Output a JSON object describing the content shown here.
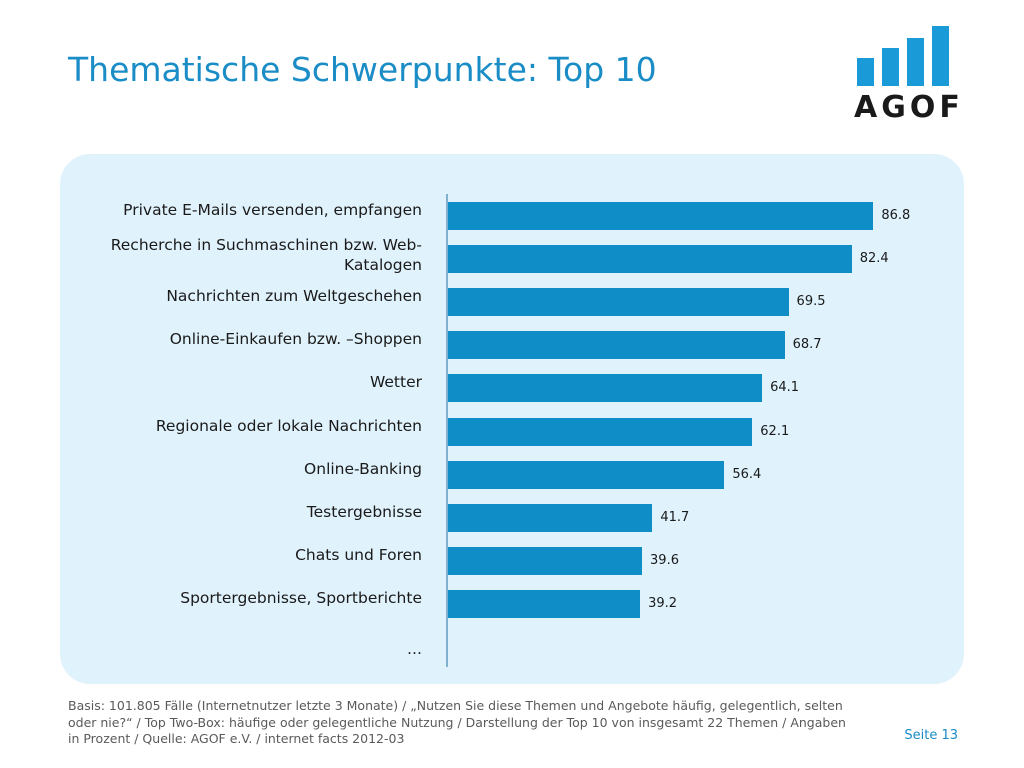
{
  "header": {
    "title": "Thematische Schwerpunkte: Top 10",
    "logo_text": "AGOF"
  },
  "chart_data": {
    "type": "bar",
    "orientation": "horizontal",
    "categories": [
      "Private E-Mails versenden, empfangen",
      "Recherche in Suchmaschinen bzw. Web-Katalogen",
      "Nachrichten zum Weltgeschehen",
      "Online-Einkaufen bzw. –Shoppen",
      "Wetter",
      "Regionale oder lokale Nachrichten",
      "Online-Banking",
      "Testergebnisse",
      "Chats und Foren",
      "Sportergebnisse, Sportberichte"
    ],
    "values": [
      "86.8",
      "82.4",
      "69.5",
      "68.7",
      "64.1",
      "62.1",
      "56.4",
      "41.7",
      "39.6",
      "39.2"
    ],
    "xlim": [
      0,
      100
    ],
    "trailing_label": "…",
    "bar_color": "#0f8dc6",
    "grid": false,
    "legend": "none"
  },
  "footer": {
    "note": "Basis: 101.805 Fälle (Internetnutzer letzte 3 Monate) / „Nutzen Sie diese Themen und Angebote häufig, gelegentlich, selten oder nie?“ / Top Two-Box: häufige oder gelegentliche Nutzung / Darstellung der Top 10 von insgesamt 22 Themen / Angaben in Prozent / Quelle: AGOF e.V. / internet facts 2012-03",
    "page_number": "Seite 13"
  },
  "colors": {
    "accent": "#1a8cc6",
    "panel_background": "#e0f2fc",
    "logo_blue": "#1a9ad6"
  }
}
